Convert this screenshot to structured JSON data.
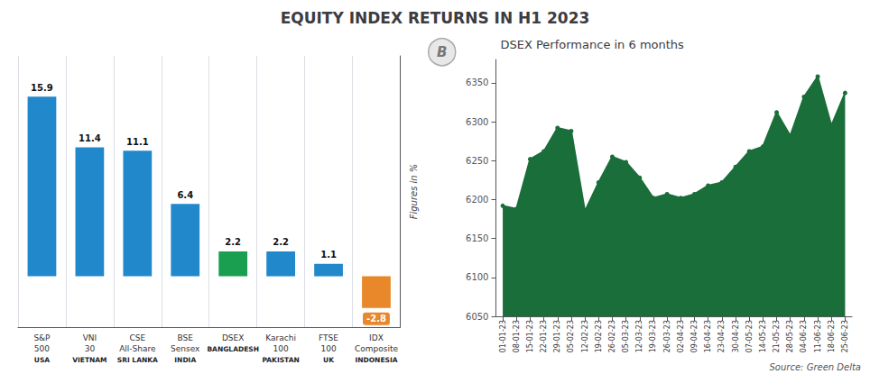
{
  "chart_data": [
    {
      "type": "bar",
      "title": "EQUITY INDEX RETURNS IN H1 2023",
      "categories": [
        "S&P\n500",
        "VNI\n30",
        "CSE\nAll-Share",
        "BSE\nSensex",
        "DSEX",
        "Karachi\n100",
        "FTSE\n100",
        "IDX\nComposite"
      ],
      "values": [
        15.9,
        11.4,
        11.1,
        6.4,
        2.2,
        2.2,
        1.1,
        -2.8
      ],
      "colors": [
        "#2288cc",
        "#2288cc",
        "#2288cc",
        "#2288cc",
        "#1a9e50",
        "#2288cc",
        "#2288cc",
        "#E8882A"
      ],
      "annotations": [
        "USA",
        "VIETNAM",
        "SRI LANKA",
        "INDIA",
        "BANGLADESH",
        "PAKISTAN",
        "UK",
        "INDONESIA"
      ],
      "ylabel": "Figures in %",
      "ylim": [
        -4.5,
        19.5
      ],
      "data_labels": true,
      "tick_labels": "x",
      "grid": true
    },
    {
      "type": "area",
      "title": "DSEX Performance in 6 months",
      "categories": [
        "01-01-23",
        "08-01-23",
        "15-01-23",
        "22-01-23",
        "29-01-23",
        "05-02-23",
        "12-02-23",
        "19-02-23",
        "26-02-23",
        "05-03-23",
        "12-03-23",
        "19-03-23",
        "26-03-23",
        "02-04-23",
        "09-04-23",
        "16-04-23",
        "23-04-23",
        "30-04-23",
        "07-05-23",
        "14-05-23",
        "21-05-23",
        "28-05-23",
        "04-06-23",
        "11-06-23",
        "18-06-23",
        "25-06-23"
      ],
      "values": [
        6192,
        6188,
        6252,
        6262,
        6292,
        6288,
        6185,
        6222,
        6255,
        6248,
        6228,
        6202,
        6207,
        6202,
        6207,
        6218,
        6222,
        6242,
        6262,
        6268,
        6312,
        6282,
        6332,
        6358,
        6295,
        6337
      ],
      "color": "#1a6e3a",
      "marker": "circle",
      "ylim": [
        6050,
        6380
      ],
      "yticks": [
        6050,
        6100,
        6150,
        6200,
        6250,
        6300,
        6350
      ],
      "annotations": [
        "Source: Green Delta",
        "B"
      ]
    }
  ]
}
